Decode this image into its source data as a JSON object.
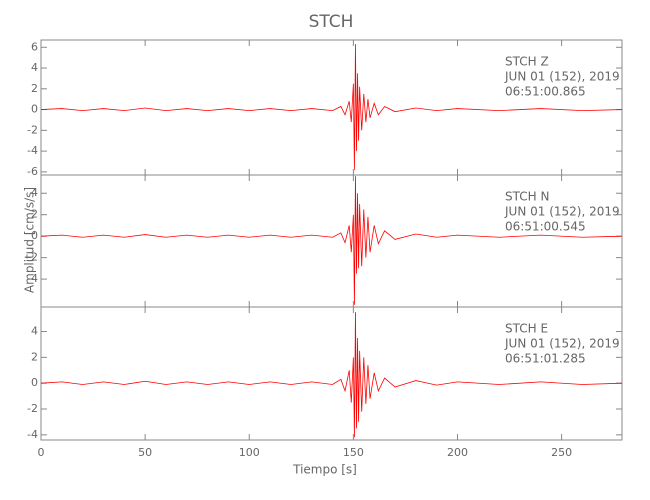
{
  "title": "STCH",
  "ylabel": "Amplitud [cm/s/s]",
  "xlabel": "Tiempo [s]",
  "chart_data": [
    {
      "type": "line",
      "annotations": [
        "STCH   Z",
        "JUN 01 (152), 2019",
        "06:51:00.865"
      ],
      "x": [
        0,
        10,
        20,
        30,
        40,
        50,
        60,
        70,
        80,
        90,
        100,
        110,
        120,
        130,
        140,
        144,
        146,
        148,
        149,
        150,
        150.5,
        151,
        151.5,
        152,
        152.5,
        153,
        154,
        155,
        156,
        157,
        158,
        160,
        162,
        165,
        170,
        180,
        190,
        200,
        220,
        240,
        260,
        279
      ],
      "values": [
        0,
        0.1,
        -0.1,
        0.1,
        -0.1,
        0.15,
        -0.1,
        0.1,
        -0.1,
        0.1,
        -0.1,
        0.1,
        -0.1,
        0.1,
        -0.1,
        0.3,
        -0.5,
        0.8,
        -1.2,
        2.5,
        -5.8,
        6.3,
        -4,
        3.5,
        -3,
        2.2,
        -2,
        1.5,
        -1.2,
        1,
        -0.8,
        0.6,
        -0.5,
        0.3,
        -0.2,
        0.15,
        -0.1,
        0.1,
        -0.1,
        0.1,
        -0.1,
        0
      ],
      "color": "#ff0000",
      "xlim": [
        0,
        279
      ],
      "xticks": [
        0,
        50,
        100,
        150,
        200,
        250
      ],
      "ylim": [
        -6.3,
        6.7
      ],
      "yticks": [
        -6,
        -4,
        -2,
        0,
        2,
        4,
        6
      ]
    },
    {
      "type": "line",
      "annotations": [
        "STCH   N",
        "JUN 01 (152), 2019",
        "06:51:00.545"
      ],
      "x": [
        0,
        10,
        20,
        30,
        40,
        50,
        60,
        70,
        80,
        90,
        100,
        110,
        120,
        130,
        140,
        144,
        146,
        148,
        149,
        150,
        150.5,
        151,
        151.5,
        152,
        152.5,
        153,
        154,
        155,
        156,
        157,
        158,
        160,
        162,
        165,
        170,
        180,
        190,
        200,
        220,
        240,
        260,
        279
      ],
      "values": [
        0,
        0.1,
        -0.1,
        0.1,
        -0.1,
        0.15,
        -0.1,
        0.1,
        -0.1,
        0.1,
        -0.1,
        0.1,
        -0.1,
        0.1,
        -0.1,
        0.3,
        -0.6,
        1,
        -1.5,
        2,
        -6.4,
        5.6,
        -3.5,
        4,
        -3,
        3,
        -2.8,
        2.5,
        -2,
        1.8,
        -1.5,
        1,
        -0.7,
        0.5,
        -0.3,
        0.2,
        -0.1,
        0.1,
        -0.1,
        0.1,
        -0.1,
        0
      ],
      "color": "#ff0000",
      "xlim": [
        0,
        279
      ],
      "xticks": [
        0,
        50,
        100,
        150,
        200,
        250
      ],
      "ylim": [
        -6.6,
        5.7
      ],
      "yticks": [
        -4,
        -2,
        0,
        2,
        4
      ]
    },
    {
      "type": "line",
      "annotations": [
        "STCH   E",
        "JUN 01 (152), 2019",
        "06:51:01.285"
      ],
      "x": [
        0,
        10,
        20,
        30,
        40,
        50,
        60,
        70,
        80,
        90,
        100,
        110,
        120,
        130,
        140,
        144,
        146,
        148,
        149,
        150,
        150.5,
        151,
        151.5,
        152,
        152.5,
        153,
        154,
        155,
        156,
        157,
        158,
        160,
        162,
        165,
        170,
        180,
        190,
        200,
        220,
        240,
        260,
        279
      ],
      "values": [
        0,
        0.1,
        -0.1,
        0.1,
        -0.1,
        0.15,
        -0.1,
        0.1,
        -0.1,
        0.1,
        -0.1,
        0.1,
        -0.1,
        0.1,
        -0.1,
        0.3,
        -0.6,
        1,
        -1.5,
        2,
        -4.2,
        5.5,
        -3.5,
        3.5,
        -3,
        2.5,
        -2.2,
        2,
        -1.6,
        1.4,
        -1.2,
        0.8,
        -0.6,
        0.4,
        -0.3,
        0.2,
        -0.15,
        0.1,
        -0.1,
        0.1,
        -0.1,
        0
      ],
      "color": "#ff0000",
      "xlim": [
        0,
        279
      ],
      "xticks": [
        0,
        50,
        100,
        150,
        200,
        250
      ],
      "ylim": [
        -4.4,
        5.9
      ],
      "yticks": [
        -4,
        -2,
        0,
        2,
        4
      ]
    }
  ]
}
